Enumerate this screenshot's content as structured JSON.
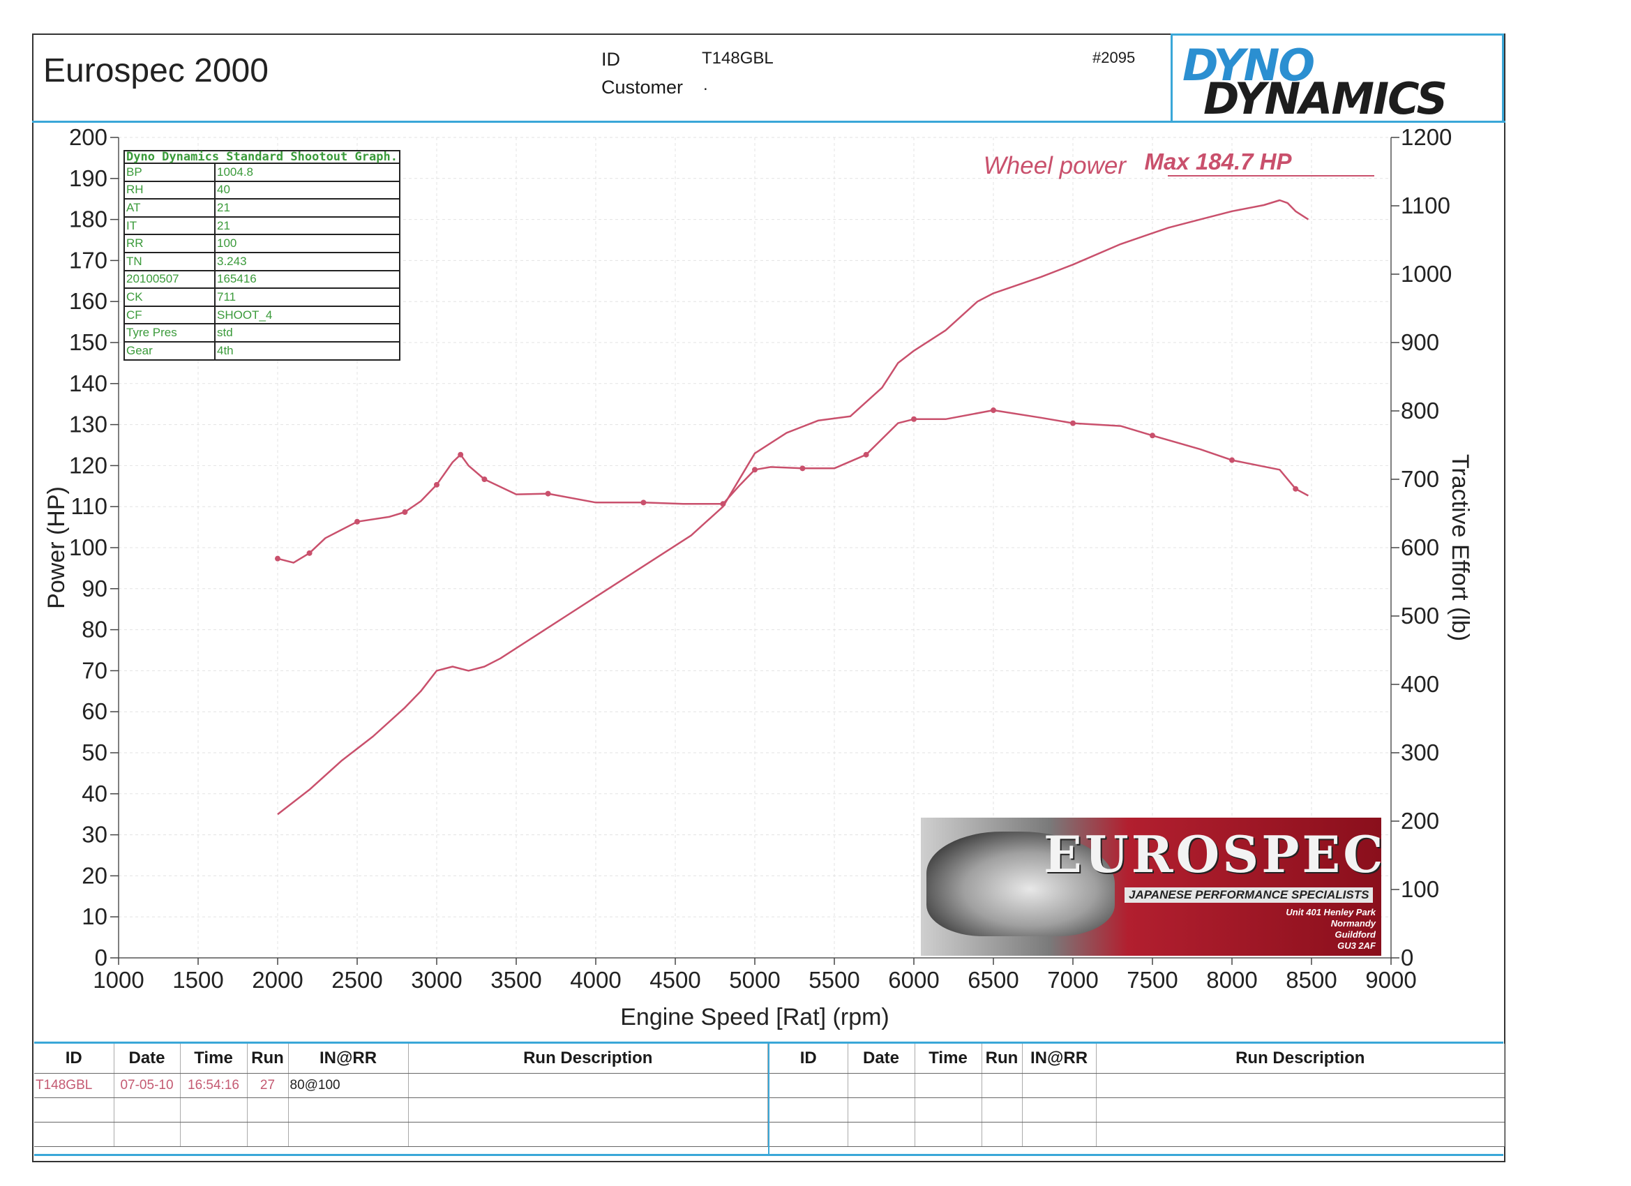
{
  "header": {
    "title": "Eurospec 2000",
    "id_label": "ID",
    "id_value": "T148GBL",
    "customer_label": "Customer",
    "customer_value": ".",
    "run_number": "#2095",
    "logo_line1": "DYNO",
    "logo_line2": "DYNAMICS",
    "brand_color": "#2b8fd1"
  },
  "info_table": {
    "caption": "Dyno Dynamics Standard Shootout Graph.",
    "rows": [
      [
        "BP",
        "1004.8"
      ],
      [
        "RH",
        "40"
      ],
      [
        "AT",
        "21"
      ],
      [
        "IT",
        "21"
      ],
      [
        "RR",
        "100"
      ],
      [
        "TN",
        "3.243"
      ],
      [
        "20100507",
        "165416"
      ],
      [
        "CK",
        "711"
      ],
      [
        "CF",
        "SHOOT_4"
      ],
      [
        "Tyre Pres",
        "std"
      ],
      [
        "Gear",
        "4th"
      ]
    ]
  },
  "banner": {
    "brand": "EUROSPEC",
    "subtitle": "JAPANESE PERFORMANCE SPECIALISTS",
    "address": [
      "Unit 401 Henley Park",
      "Normandy",
      "Guildford",
      "GU3 2AF"
    ]
  },
  "chart_data": {
    "type": "line",
    "xlabel": "Engine Speed [Rat] (rpm)",
    "ylabel": "Power (HP)",
    "y2label": "Tractive Effort (lb)",
    "xlim": [
      1000,
      9000
    ],
    "ylim": [
      0,
      200
    ],
    "y2lim": [
      0,
      1200
    ],
    "x_ticks": [
      1000,
      1500,
      2000,
      2500,
      3000,
      3500,
      4000,
      4500,
      5000,
      5500,
      6000,
      6500,
      7000,
      7500,
      8000,
      8500,
      9000
    ],
    "y_ticks": [
      0,
      10,
      20,
      30,
      40,
      50,
      60,
      70,
      80,
      90,
      100,
      110,
      120,
      130,
      140,
      150,
      160,
      170,
      180,
      190,
      200
    ],
    "y2_ticks": [
      0,
      100,
      200,
      300,
      400,
      500,
      600,
      700,
      800,
      900,
      1000,
      1100,
      1200
    ],
    "grid": true,
    "annotation_label": "Wheel power",
    "annotation_value": "Max 184.7 HP",
    "series_color": "#c9506c",
    "series": [
      {
        "axis": "left",
        "x": [
          2000,
          2200,
          2400,
          2600,
          2800,
          2900,
          3000,
          3100,
          3200,
          3300,
          3400,
          3600,
          3800,
          4000,
          4200,
          4400,
          4600,
          4800,
          5000,
          5200,
          5400,
          5600,
          5800,
          5900,
          6000,
          6200,
          6400,
          6500,
          6800,
          7000,
          7300,
          7600,
          7800,
          8000,
          8200,
          8300,
          8350,
          8400,
          8480
        ],
        "values": [
          35,
          41,
          48,
          54,
          61,
          65,
          70,
          71,
          70,
          71,
          73,
          78,
          83,
          88,
          93,
          98,
          103,
          110,
          123,
          128,
          131,
          132,
          139,
          145,
          148,
          153,
          160,
          162,
          166,
          169,
          174,
          178,
          180,
          182,
          183.5,
          184.7,
          184,
          182,
          180
        ]
      },
      {
        "axis": "right",
        "x": [
          2000,
          2100,
          2200,
          2300,
          2500,
          2700,
          2800,
          2900,
          3000,
          3100,
          3150,
          3200,
          3300,
          3500,
          3700,
          4000,
          4300,
          4550,
          4800,
          4900,
          5000,
          5100,
          5300,
          5500,
          5700,
          5900,
          6000,
          6200,
          6500,
          6800,
          7000,
          7300,
          7500,
          7800,
          8000,
          8300,
          8400,
          8480
        ],
        "values": [
          584,
          578,
          592,
          614,
          638,
          645,
          652,
          668,
          692,
          725,
          736,
          720,
          700,
          678,
          679,
          666,
          666,
          664,
          664,
          690,
          714,
          718,
          716,
          716,
          736,
          782,
          788,
          788,
          801,
          790,
          782,
          778,
          764,
          744,
          728,
          714,
          686,
          676
        ]
      }
    ]
  },
  "runs_table": {
    "columns": [
      "ID",
      "Date",
      "Time",
      "Run",
      "IN@RR",
      "Run Description"
    ],
    "rows": [
      [
        "T148GBL",
        "07-05-10",
        "16:54:16",
        "27",
        "80@100",
        ""
      ]
    ]
  }
}
